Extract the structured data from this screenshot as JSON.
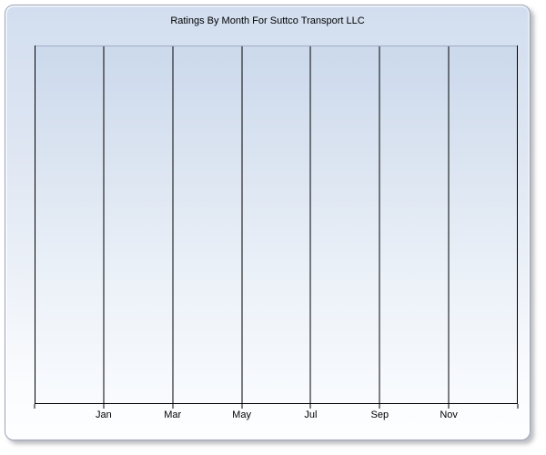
{
  "page": {
    "background": "#ffffff"
  },
  "chart_data": {
    "type": "line",
    "title": "Ratings By Month For Suttco Transport LLC",
    "x_tick_labels": [
      "Jan",
      "Mar",
      "May",
      "Jul",
      "Sep",
      "Nov"
    ],
    "x_gridline_count": 8,
    "y_tick_labels": [],
    "xlabel": "",
    "ylabel": "",
    "series": [],
    "plot_empty": true,
    "legend_position": "none",
    "grid": "vertical-only",
    "layout": {
      "x_labels_under_gridline_indices": [
        1,
        2,
        3,
        4,
        5,
        6
      ],
      "ticks_below_axis": true
    },
    "colors": {
      "widget_bg_top": "#d2deef",
      "widget_bg_bottom": "#fdfeff",
      "widget_border": "#9aa4b6",
      "plot_bg_top": "#cbd9ec",
      "plot_bg_bottom": "#f9fbfe",
      "plot_top_border": "#a2aec1",
      "axis_line": "#000000",
      "gridline": "#000000",
      "title_color": "#000000"
    }
  }
}
